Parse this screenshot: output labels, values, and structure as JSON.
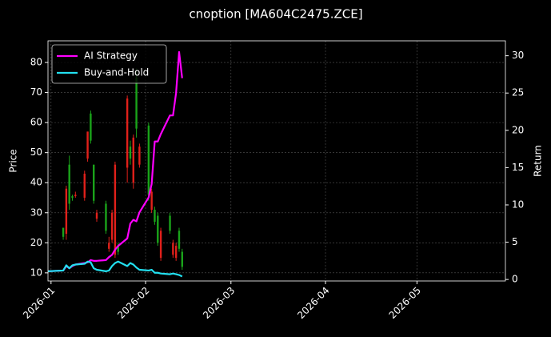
{
  "chart_data": {
    "type": "candlestick",
    "title": "cnoption [MA604C2475.ZCE]",
    "ylabel": "Price",
    "y2label": "Return",
    "xlim": [
      "2025-12-31",
      "2026-05-30"
    ],
    "xticks": [
      {
        "value": "2026-01-01",
        "label": "2026-01"
      },
      {
        "value": "2026-02-01",
        "label": "2026-02"
      },
      {
        "value": "2026-03-01",
        "label": "2026-03"
      },
      {
        "value": "2026-04-01",
        "label": "2026-04"
      },
      {
        "value": "2026-05-01",
        "label": "2026-05"
      }
    ],
    "ylim": [
      7.3,
      87.2
    ],
    "yticks": [
      10,
      20,
      30,
      40,
      50,
      60,
      70,
      80
    ],
    "y2lim": [
      -0.2,
      32
    ],
    "y2ticks": [
      0,
      5,
      10,
      15,
      20,
      25,
      30
    ],
    "grid": true,
    "legend": "upper left",
    "up_color": "#1aa31a",
    "down_color": "#e0201a",
    "candles": {
      "x": [
        "2026-01-05",
        "2026-01-06",
        "2026-01-07",
        "2026-01-08",
        "2026-01-09",
        "2026-01-12",
        "2026-01-13",
        "2026-01-14",
        "2026-01-15",
        "2026-01-16",
        "2026-01-19",
        "2026-01-20",
        "2026-01-21",
        "2026-01-22",
        "2026-01-23",
        "2026-01-26",
        "2026-01-27",
        "2026-01-28",
        "2026-01-29",
        "2026-01-30",
        "2026-02-02",
        "2026-02-03",
        "2026-02-04",
        "2026-02-05",
        "2026-02-06",
        "2026-02-09",
        "2026-02-10",
        "2026-02-11",
        "2026-02-12",
        "2026-02-13"
      ],
      "open": [
        22,
        38,
        33,
        35,
        36,
        43,
        57,
        54,
        34,
        30,
        24,
        20,
        30,
        46,
        17,
        68,
        48,
        55,
        58,
        52,
        36,
        37,
        27,
        20,
        24,
        24,
        20,
        19,
        18,
        12
      ],
      "high": [
        25,
        39,
        49,
        36,
        37,
        44,
        57,
        64,
        46,
        31,
        34,
        22,
        31,
        47,
        20,
        69,
        54,
        56,
        78,
        53,
        60,
        38,
        32,
        30,
        25,
        30,
        21,
        20,
        25,
        18
      ],
      "low": [
        21,
        21,
        31,
        34,
        35,
        34,
        47,
        53,
        33,
        27,
        23,
        17,
        20,
        15,
        16,
        40,
        46,
        38,
        55,
        45,
        34,
        30,
        26,
        19,
        14,
        23,
        15,
        14,
        17,
        11
      ],
      "close": [
        25,
        23,
        46,
        35.5,
        35.5,
        35,
        48,
        63,
        46,
        28,
        33,
        18,
        21,
        16,
        19,
        45,
        52,
        40,
        75,
        46,
        59,
        31,
        31,
        29,
        15,
        29,
        16,
        15,
        24,
        17
      ]
    },
    "x": [
      "2025-12-31",
      "2026-01-05",
      "2026-01-06",
      "2026-01-07",
      "2026-01-08",
      "2026-01-09",
      "2026-01-12",
      "2026-01-13",
      "2026-01-14",
      "2026-01-15",
      "2026-01-16",
      "2026-01-19",
      "2026-01-20",
      "2026-01-21",
      "2026-01-22",
      "2026-01-23",
      "2026-01-26",
      "2026-01-27",
      "2026-01-28",
      "2026-01-29",
      "2026-01-30",
      "2026-02-02",
      "2026-02-03",
      "2026-02-04",
      "2026-02-05",
      "2026-02-06",
      "2026-02-09",
      "2026-02-10",
      "2026-02-11",
      "2026-02-12",
      "2026-02-13"
    ],
    "series": [
      {
        "name": "AI Strategy",
        "color": "#ff00ff",
        "axis": "y2",
        "values": [
          1.1,
          1.2,
          1.8,
          1.5,
          1.8,
          2.0,
          2.2,
          2.3,
          2.6,
          2.5,
          2.5,
          2.6,
          3.0,
          3.3,
          4.0,
          4.5,
          5.5,
          7.5,
          8.0,
          7.8,
          9.0,
          11.0,
          12.8,
          18.5,
          18.5,
          19.5,
          22.0,
          22.0,
          25.0,
          30.5,
          27.0
        ]
      },
      {
        "name": "Buy-and-Hold",
        "color": "#22e0f0",
        "axis": "y2",
        "values": [
          1.1,
          1.2,
          1.9,
          1.5,
          1.9,
          2.0,
          2.1,
          2.4,
          2.3,
          1.5,
          1.3,
          1.1,
          1.2,
          1.8,
          2.2,
          2.4,
          1.8,
          2.2,
          2.0,
          1.6,
          1.3,
          1.2,
          1.3,
          0.9,
          0.9,
          0.8,
          0.7,
          0.8,
          0.7,
          0.6,
          0.4
        ]
      }
    ]
  }
}
